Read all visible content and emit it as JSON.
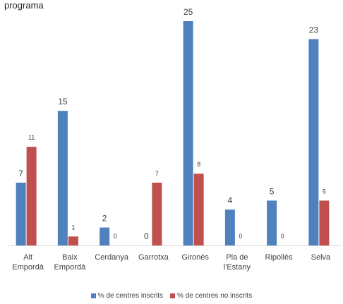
{
  "chart_data": {
    "type": "bar",
    "title": "programa",
    "categories": [
      [
        "Alt",
        "Empordà"
      ],
      [
        "Baix",
        "Empordà"
      ],
      [
        "Cerdanya"
      ],
      [
        "Garrotxa"
      ],
      [
        "Gironès"
      ],
      [
        "Pla de",
        "l'Estany"
      ],
      [
        "Ripollès"
      ],
      [
        "Selva"
      ]
    ],
    "series": [
      {
        "name": "% de centres inscrits",
        "values": [
          7,
          15,
          2,
          0,
          25,
          4,
          5,
          23
        ],
        "color": "#4f81bd"
      },
      {
        "name": "% de centres no inscrits",
        "values": [
          11,
          1,
          0,
          7,
          8,
          0,
          0,
          5
        ],
        "color": "#c0504d"
      }
    ],
    "ylim": [
      0,
      26
    ],
    "grid": false,
    "legend_position": "bottom"
  }
}
